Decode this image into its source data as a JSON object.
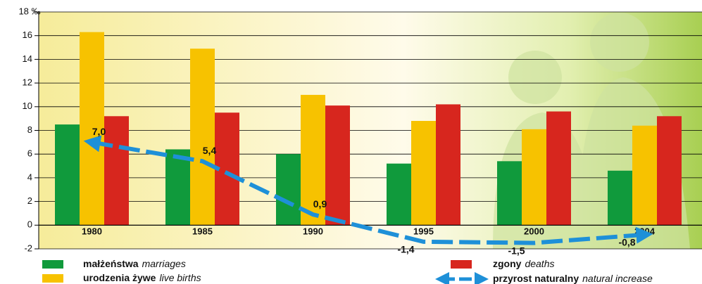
{
  "chart_data": {
    "type": "bar",
    "categories": [
      "1980",
      "1985",
      "1990",
      "1995",
      "2000",
      "2004"
    ],
    "series": [
      {
        "name": "małżeństwa",
        "translation": "marriages",
        "color": "#109a3c",
        "values": [
          8.5,
          6.4,
          6.0,
          5.2,
          5.4,
          4.6
        ]
      },
      {
        "name": "urodzenia żywe",
        "translation": "live births",
        "color": "#f7c200",
        "values": [
          16.3,
          14.9,
          11.0,
          8.8,
          8.1,
          8.4
        ]
      },
      {
        "name": "zgony",
        "translation": "deaths",
        "color": "#d7261e",
        "values": [
          9.2,
          9.5,
          10.1,
          10.2,
          9.6,
          9.2
        ]
      },
      {
        "name": "przyrost naturalny",
        "translation": "natural increase",
        "color": "#1e90d8",
        "type": "line",
        "values": [
          7.0,
          5.4,
          0.9,
          -1.4,
          -1.5,
          -0.8
        ],
        "value_labels": [
          "7,0",
          "5,4",
          "0,9",
          "-1,4",
          "-1,5",
          "-0,8"
        ]
      }
    ],
    "ylim": [
      -2,
      18
    ],
    "yticks": [
      -2,
      0,
      2,
      4,
      6,
      8,
      10,
      12,
      14,
      16,
      {
        "value": 18,
        "label": "18 ‰"
      }
    ],
    "grid": true
  }
}
